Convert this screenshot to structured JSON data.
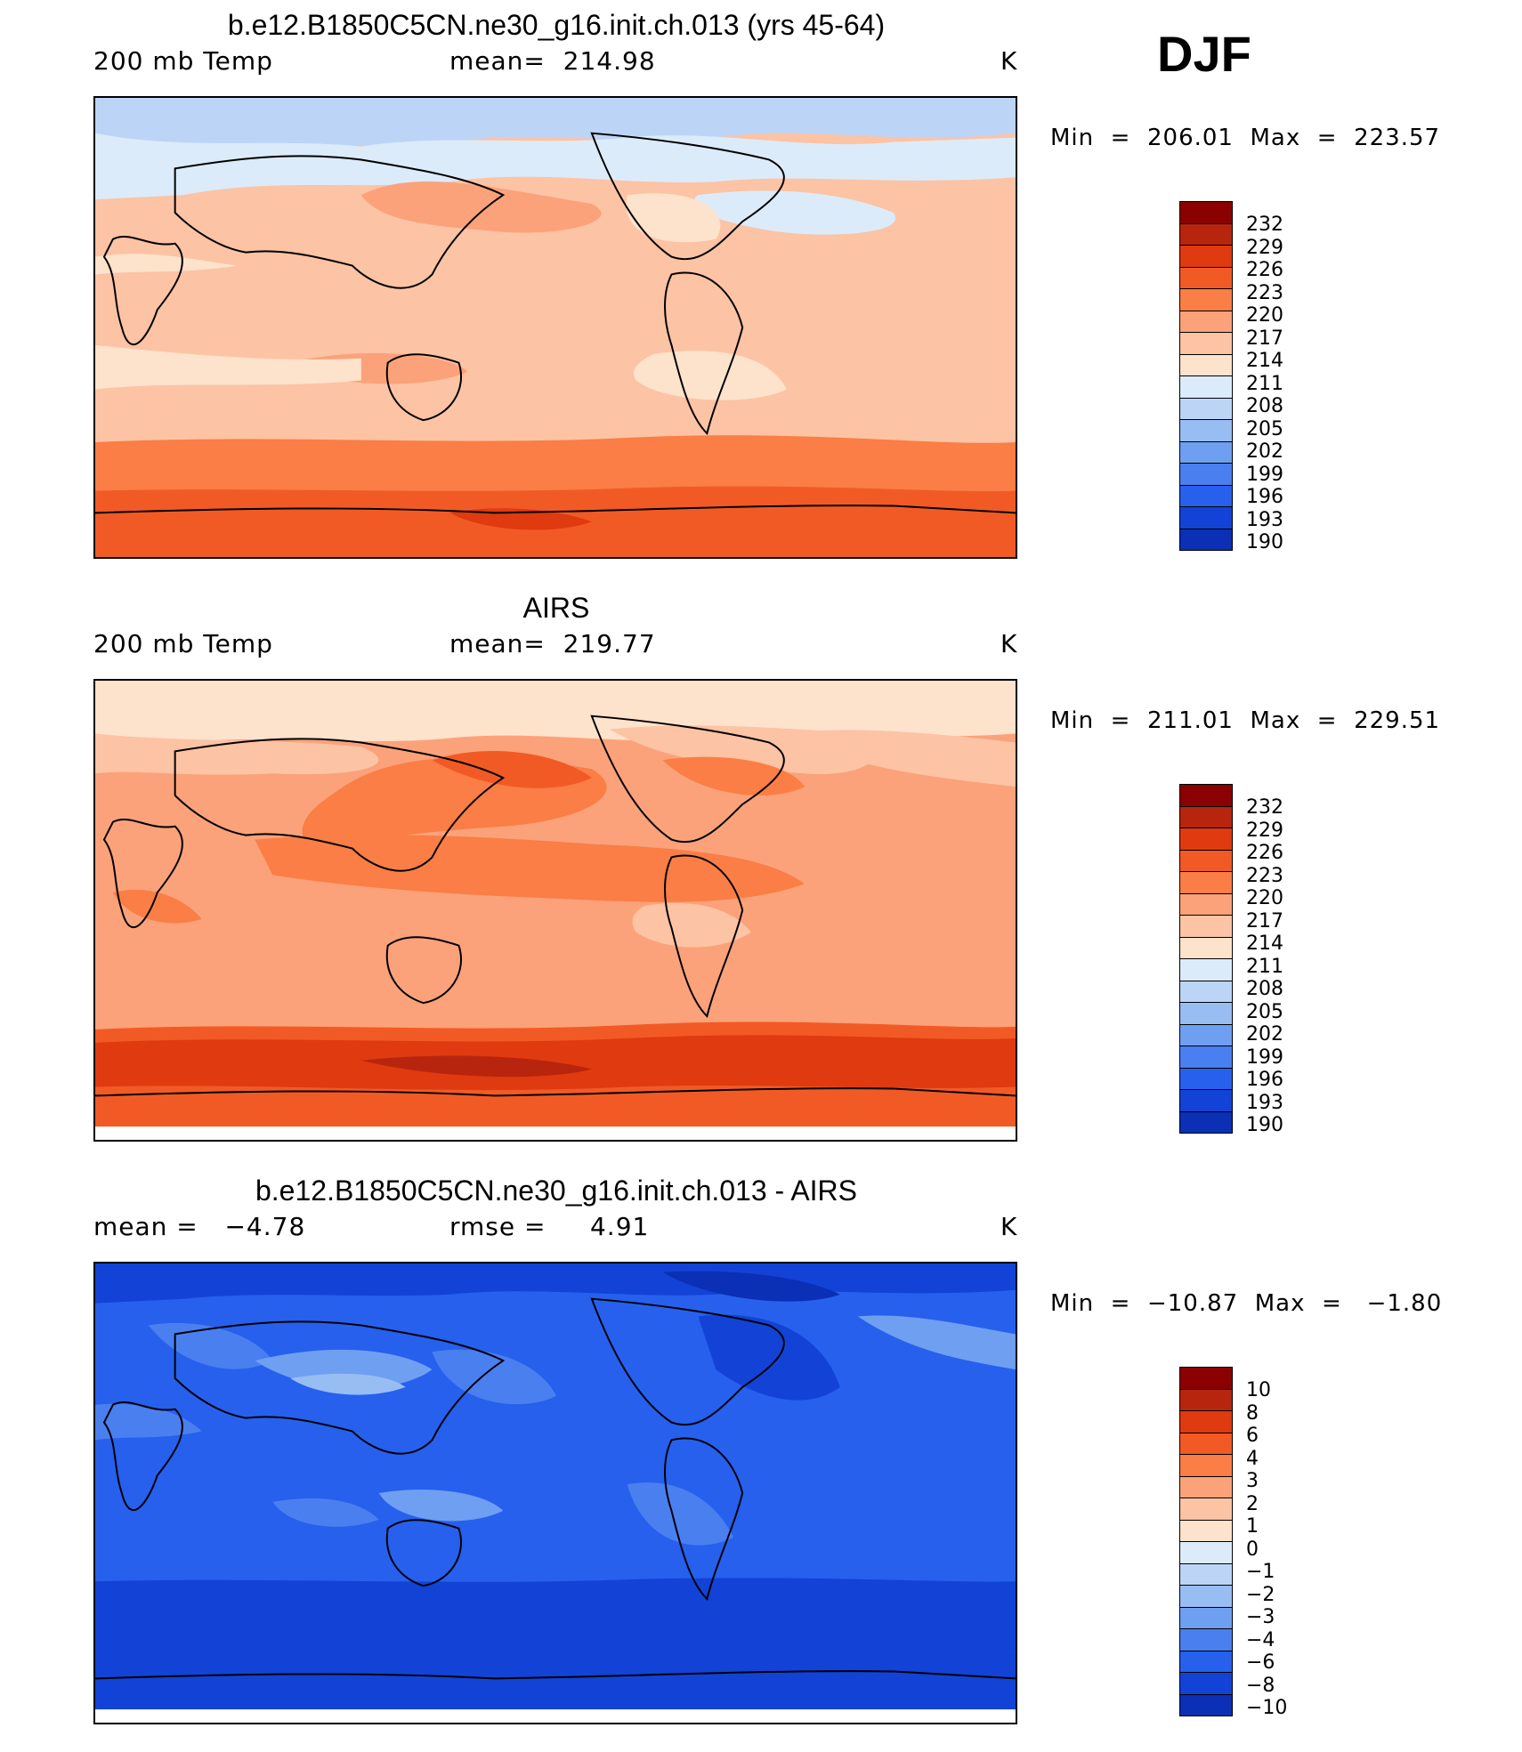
{
  "season": "DJF",
  "panels": [
    {
      "id": "model",
      "title": "b.e12.B1850C5CN.ne30_g16.init.ch.013 (yrs 45-64)",
      "left_label": "200 mb Temp",
      "mid_label": "mean=  214.98",
      "units": "K",
      "minmax": "Min  =  206.01  Max  =  223.57",
      "colorbar_levels": [
        "232",
        "229",
        "226",
        "223",
        "220",
        "217",
        "214",
        "211",
        "208",
        "205",
        "202",
        "199",
        "196",
        "193",
        "190"
      ],
      "colors": [
        "#8b0000",
        "#b8250e",
        "#e03a10",
        "#f25a25",
        "#fa7e45",
        "#fba27a",
        "#fcc3a4",
        "#fde2cc",
        "#dcebfa",
        "#bcd5f7",
        "#98bdf3",
        "#6f9ff0",
        "#4a7ff0",
        "#2660ed",
        "#1243d6",
        "#0b2fb5",
        "#081b8c"
      ],
      "map_fill": "#fcc3a4"
    },
    {
      "id": "obs",
      "title": "AIRS",
      "left_label": "200 mb Temp",
      "mid_label": "mean=  219.77",
      "units": "K",
      "minmax": "Min  =  211.01  Max  =  229.51",
      "colorbar_levels": [
        "232",
        "229",
        "226",
        "223",
        "220",
        "217",
        "214",
        "211",
        "208",
        "205",
        "202",
        "199",
        "196",
        "193",
        "190"
      ],
      "colors": [
        "#8b0000",
        "#b8250e",
        "#e03a10",
        "#f25a25",
        "#fa7e45",
        "#fba27a",
        "#fcc3a4",
        "#fde2cc",
        "#dcebfa",
        "#bcd5f7",
        "#98bdf3",
        "#6f9ff0",
        "#4a7ff0",
        "#2660ed",
        "#1243d6",
        "#0b2fb5",
        "#081b8c"
      ],
      "map_fill": "#fba27a"
    },
    {
      "id": "diff",
      "title": "b.e12.B1850C5CN.ne30_g16.init.ch.013 - AIRS",
      "left_label": "mean =   −4.78",
      "mid_label": "rmse =     4.91",
      "units": "K",
      "minmax": "Min  =  −10.87  Max  =   −1.80",
      "colorbar_levels": [
        "10",
        "8",
        "6",
        "4",
        "3",
        "2",
        "1",
        "0",
        "−1",
        "−2",
        "−3",
        "−4",
        "−6",
        "−8",
        "−10"
      ],
      "colors": [
        "#8b0000",
        "#b8250e",
        "#e03a10",
        "#f25a25",
        "#fa7e45",
        "#fba27a",
        "#fcc3a4",
        "#fde2cc",
        "#dcebfa",
        "#bcd5f7",
        "#98bdf3",
        "#6f9ff0",
        "#4a7ff0",
        "#2660ed",
        "#1243d6",
        "#0b2fb5",
        "#081b8c"
      ],
      "map_fill": "#2660ed"
    }
  ]
}
